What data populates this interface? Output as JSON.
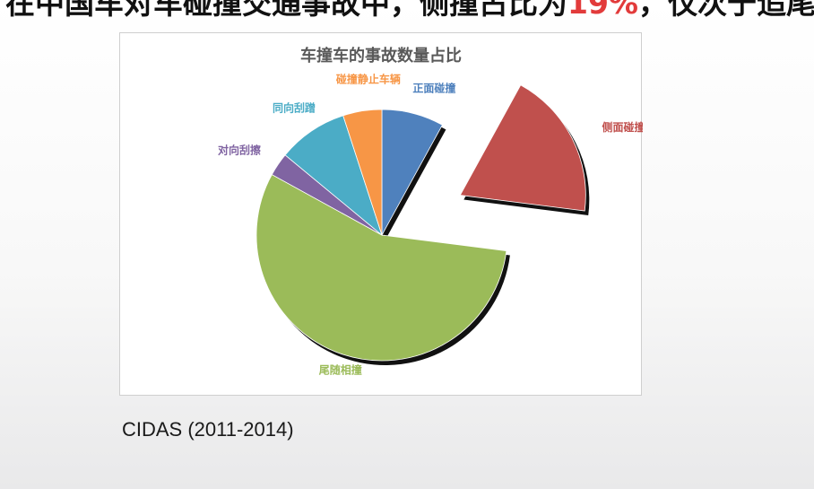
{
  "headline": {
    "prefix": "在中国车对车碰撞交通事故中，侧撞占比为",
    "highlight": "19%",
    "suffix": "，仅次于追尾。"
  },
  "colors": {
    "accent": "#e23b3b"
  },
  "chart_data": {
    "type": "pie",
    "title": "车撞车的事故数量占比",
    "slices": [
      {
        "label": "正面碰撞",
        "value": 8,
        "color": "#4f81bd",
        "exploded": false
      },
      {
        "label": "侧面碰撞",
        "value": 19,
        "color": "#c0504d",
        "exploded": true
      },
      {
        "label": "尾随相撞",
        "value": 56,
        "color": "#9bbb59",
        "exploded": false
      },
      {
        "label": "对向刮擦",
        "value": 3,
        "color": "#8064a2",
        "exploded": false
      },
      {
        "label": "同向刮蹭",
        "value": 9,
        "color": "#4bacc6",
        "exploded": false
      },
      {
        "label": "碰撞静止车辆",
        "value": 5,
        "color": "#f79646",
        "exploded": false
      }
    ],
    "legend": "none",
    "start_angle_deg": 0,
    "direction": "clockwise"
  },
  "source_note": "CIDAS (2011-2014)"
}
